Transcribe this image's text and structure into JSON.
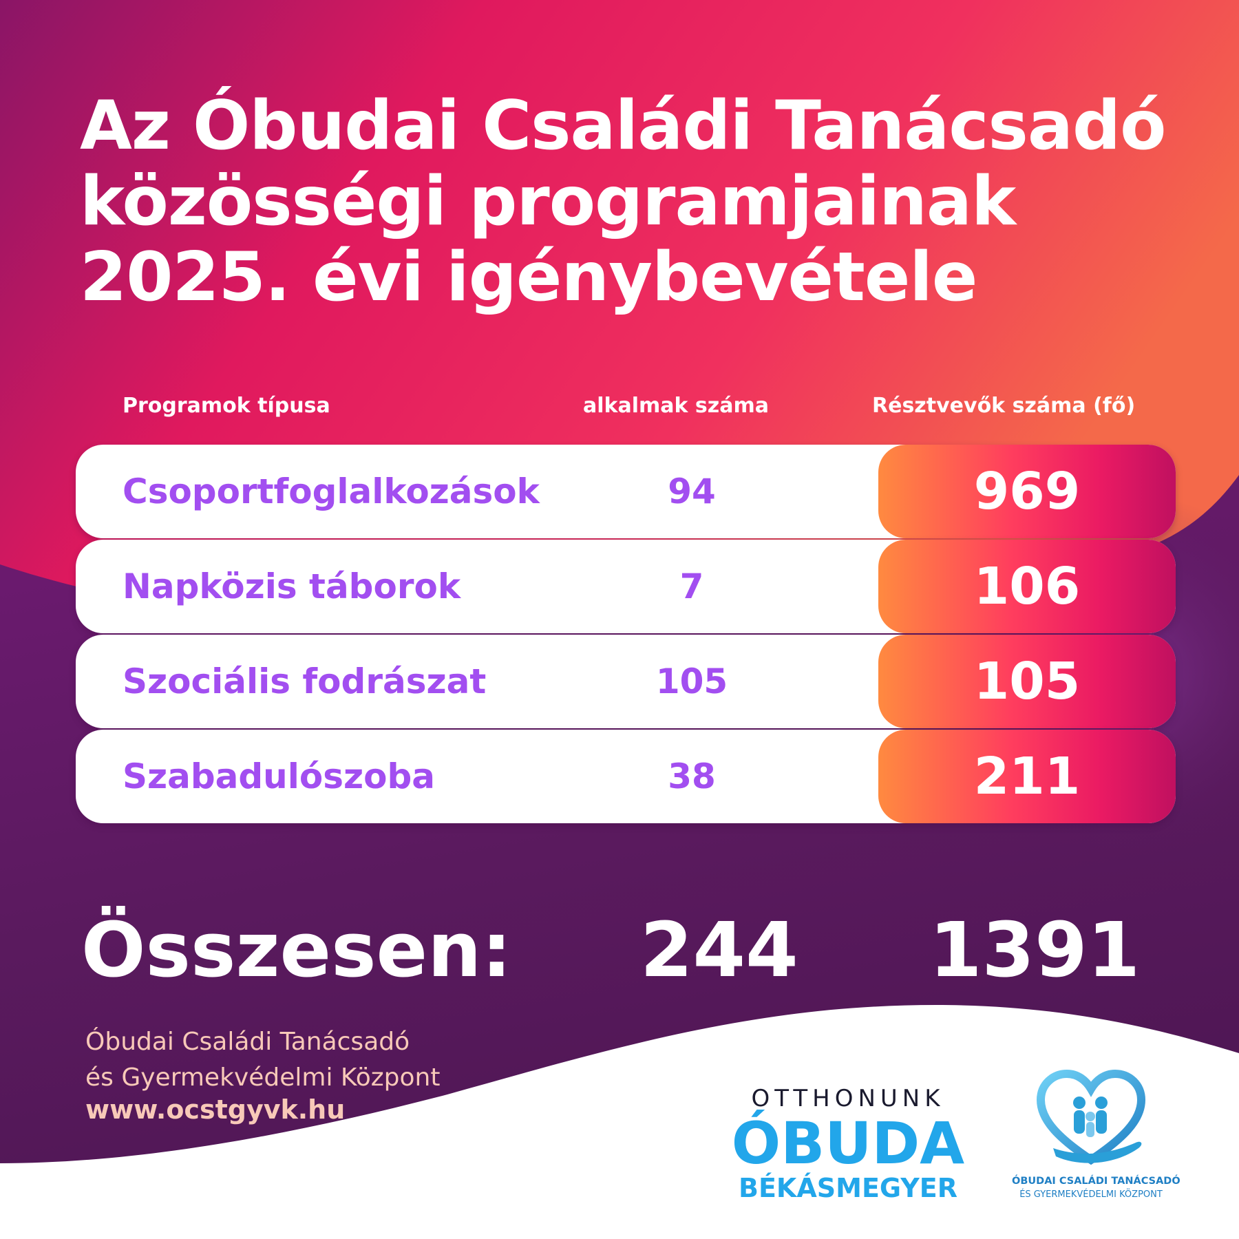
{
  "title_lines": [
    "Az Óbudai Családi Tanácsadó",
    "közösségi programjainak",
    "2025. évi igénybevétele"
  ],
  "columns": {
    "type": "Programok típusa",
    "count": "alkalmak száma",
    "participants": "Résztvevők száma (fő)"
  },
  "rows": [
    {
      "name": "Csoportfoglalkozások",
      "count": "94",
      "participants": "969"
    },
    {
      "name": "Napközis táborok",
      "count": "7",
      "participants": "106"
    },
    {
      "name": "Szociális fodrászat",
      "count": "105",
      "participants": "105"
    },
    {
      "name": "Szabadulószoba",
      "count": "38",
      "participants": "211"
    }
  ],
  "totals": {
    "label": "Összesen:",
    "count": "244",
    "participants": "1391"
  },
  "footer": {
    "org_lines": [
      "Óbudai Családi Tanácsadó",
      "és Gyermekvédelmi Központ"
    ],
    "url": "www.ocstgyvk.hu"
  },
  "logo_obuda": {
    "top": "OTTHONUNK",
    "middle": "ÓBUDA",
    "bottom": "BÉKÁSMEGYER"
  },
  "logo_center": {
    "line1": "ÓBUDAI CSALÁDI TANÁCSADÓ",
    "line2": "ÉS GYERMEKVÉDELMI KÖZPONT",
    "icon": "heart-family-hand-icon"
  },
  "colors": {
    "accent_purple": "#a24ef0",
    "gradient_pink": "#ea1a63",
    "gradient_orange": "#ff8a40",
    "logo_blue": "#22a6ea"
  }
}
